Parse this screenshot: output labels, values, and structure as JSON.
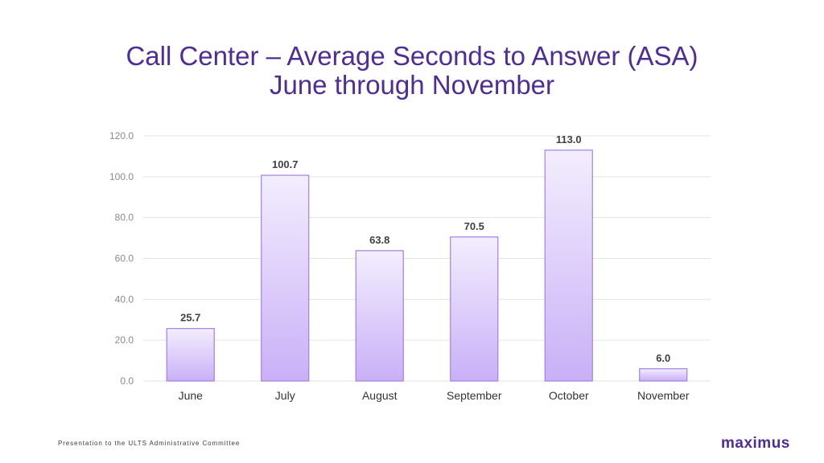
{
  "chart_data": {
    "type": "bar",
    "title": "Call Center – Average Seconds to Answer (ASA)",
    "subtitle": "June through November",
    "categories": [
      "June",
      "July",
      "August",
      "September",
      "October",
      "November"
    ],
    "values": [
      25.7,
      100.7,
      63.8,
      70.5,
      113.0,
      6.0
    ],
    "value_labels": [
      "25.7",
      "100.7",
      "63.8",
      "70.5",
      "113.0",
      "6.0"
    ],
    "xlabel": "",
    "ylabel": "",
    "ylim": [
      0,
      120
    ],
    "yticks": [
      0,
      20,
      40,
      60,
      80,
      100,
      120
    ],
    "ytick_labels": [
      "0.0",
      "20.0",
      "40.0",
      "60.0",
      "80.0",
      "100.0",
      "120.0"
    ],
    "grid": true,
    "legend": "none"
  },
  "colors": {
    "title": "#4f2d96",
    "bar_top": "#f3eefe",
    "bar_bottom": "#c9b0f7",
    "bar_stroke": "#a47fe0",
    "grid": "#e3e3e3",
    "axis_text": "#8a8a8a",
    "label_text": "#404040"
  },
  "footer": {
    "text": "Presentation to the ULTS Administrative Committee"
  },
  "logo": {
    "text": "maximus"
  }
}
